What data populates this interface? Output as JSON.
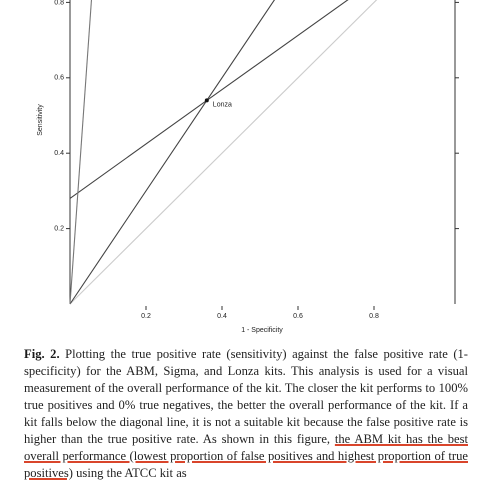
{
  "chart_data": {
    "type": "line",
    "xlabel": "1 - Specificity",
    "ylabel": "Sensitivity",
    "xlim": [
      0,
      1
    ],
    "ylim": [
      0,
      1
    ],
    "xticks": [
      0.2,
      0.4,
      0.6,
      0.8
    ],
    "yticks": [
      0.2,
      0.4,
      0.6,
      0.8
    ],
    "series": [
      {
        "color": "#cccccc",
        "x": [
          0,
          1
        ],
        "values": [
          0,
          1
        ]
      },
      {
        "color": "#444444",
        "x": [
          0,
          0.36,
          0.667
        ],
        "values": [
          0,
          0.54,
          1
        ]
      },
      {
        "color": "#444444",
        "x": [
          0,
          0.36,
          1
        ],
        "values": [
          0.28,
          0.54,
          1
        ]
      },
      {
        "color": "#777777",
        "x": [
          0,
          0.07
        ],
        "values": [
          0,
          1
        ]
      }
    ],
    "annotations": [
      {
        "text": "Lonza",
        "x": 0.36,
        "y": 0.54
      }
    ]
  },
  "caption": {
    "label": "Fig. 2.",
    "text_before": "Plotting the true positive rate (sensitivity) against the false positive rate (1-specificity) for the ABM, Sigma, and Lonza kits. This analysis is used for a visual measurement of the overall performance of the kit. The closer the kit performs to 100% true positives and 0% true negatives, the better the overall performance of the kit. If a kit falls below the diagonal line, it is not a suitable kit because the false positive rate is higher than the true positive rate. As shown in this figure, ",
    "underlined": "the ABM kit has the best overall performance (lowest proportion of false positives and highest proportion of true positives)",
    "text_after": " using the ATCC kit as"
  }
}
